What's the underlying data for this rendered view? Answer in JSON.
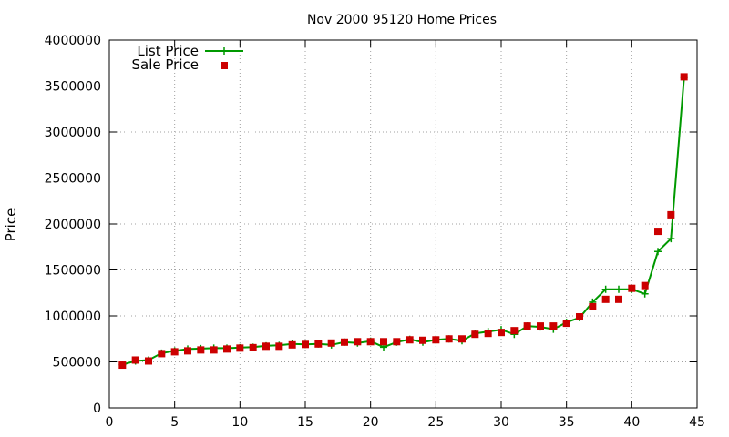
{
  "chart_data": {
    "type": "line",
    "title": "Nov 2000 95120 Home Prices",
    "xlabel": "",
    "ylabel": "Price",
    "xlim": [
      0,
      45
    ],
    "ylim": [
      0,
      4000000
    ],
    "xticks": [
      0,
      5,
      10,
      15,
      20,
      25,
      30,
      35,
      40,
      45
    ],
    "yticks": [
      0,
      500000,
      1000000,
      1500000,
      2000000,
      2500000,
      3000000,
      3500000,
      4000000
    ],
    "grid": true,
    "legend_position": "top-left",
    "series": [
      {
        "name": "List Price",
        "style": "line-with-plus-markers",
        "color": "#009900",
        "x": [
          1,
          2,
          3,
          4,
          5,
          6,
          7,
          8,
          9,
          10,
          11,
          12,
          13,
          14,
          15,
          16,
          17,
          18,
          19,
          20,
          21,
          22,
          23,
          24,
          25,
          26,
          27,
          28,
          29,
          30,
          31,
          32,
          33,
          34,
          35,
          36,
          37,
          38,
          39,
          40,
          41,
          42,
          43,
          44
        ],
        "values": [
          470000,
          510000,
          520000,
          595000,
          620000,
          640000,
          645000,
          650000,
          650000,
          655000,
          660000,
          675000,
          680000,
          695000,
          690000,
          695000,
          685000,
          715000,
          705000,
          725000,
          660000,
          715000,
          745000,
          715000,
          740000,
          750000,
          730000,
          810000,
          830000,
          850000,
          800000,
          890000,
          880000,
          855000,
          930000,
          980000,
          1150000,
          1290000,
          1290000,
          1290000,
          1240000,
          1700000,
          1840000,
          3590000
        ]
      },
      {
        "name": "Sale Price",
        "style": "square-markers",
        "color": "#cc0000",
        "x": [
          1,
          2,
          3,
          4,
          5,
          6,
          7,
          8,
          9,
          10,
          11,
          12,
          13,
          14,
          15,
          16,
          17,
          18,
          19,
          20,
          21,
          22,
          23,
          24,
          25,
          26,
          27,
          28,
          29,
          30,
          31,
          32,
          33,
          34,
          35,
          36,
          37,
          38,
          39,
          40,
          41,
          42,
          43,
          44
        ],
        "values": [
          465000,
          520000,
          510000,
          590000,
          610000,
          620000,
          630000,
          630000,
          640000,
          650000,
          655000,
          670000,
          670000,
          685000,
          690000,
          695000,
          705000,
          715000,
          720000,
          720000,
          720000,
          720000,
          740000,
          735000,
          740000,
          750000,
          750000,
          800000,
          810000,
          820000,
          840000,
          890000,
          890000,
          890000,
          920000,
          990000,
          1100000,
          1180000,
          1180000,
          1300000,
          1330000,
          1920000,
          2100000,
          3600000
        ]
      }
    ]
  }
}
